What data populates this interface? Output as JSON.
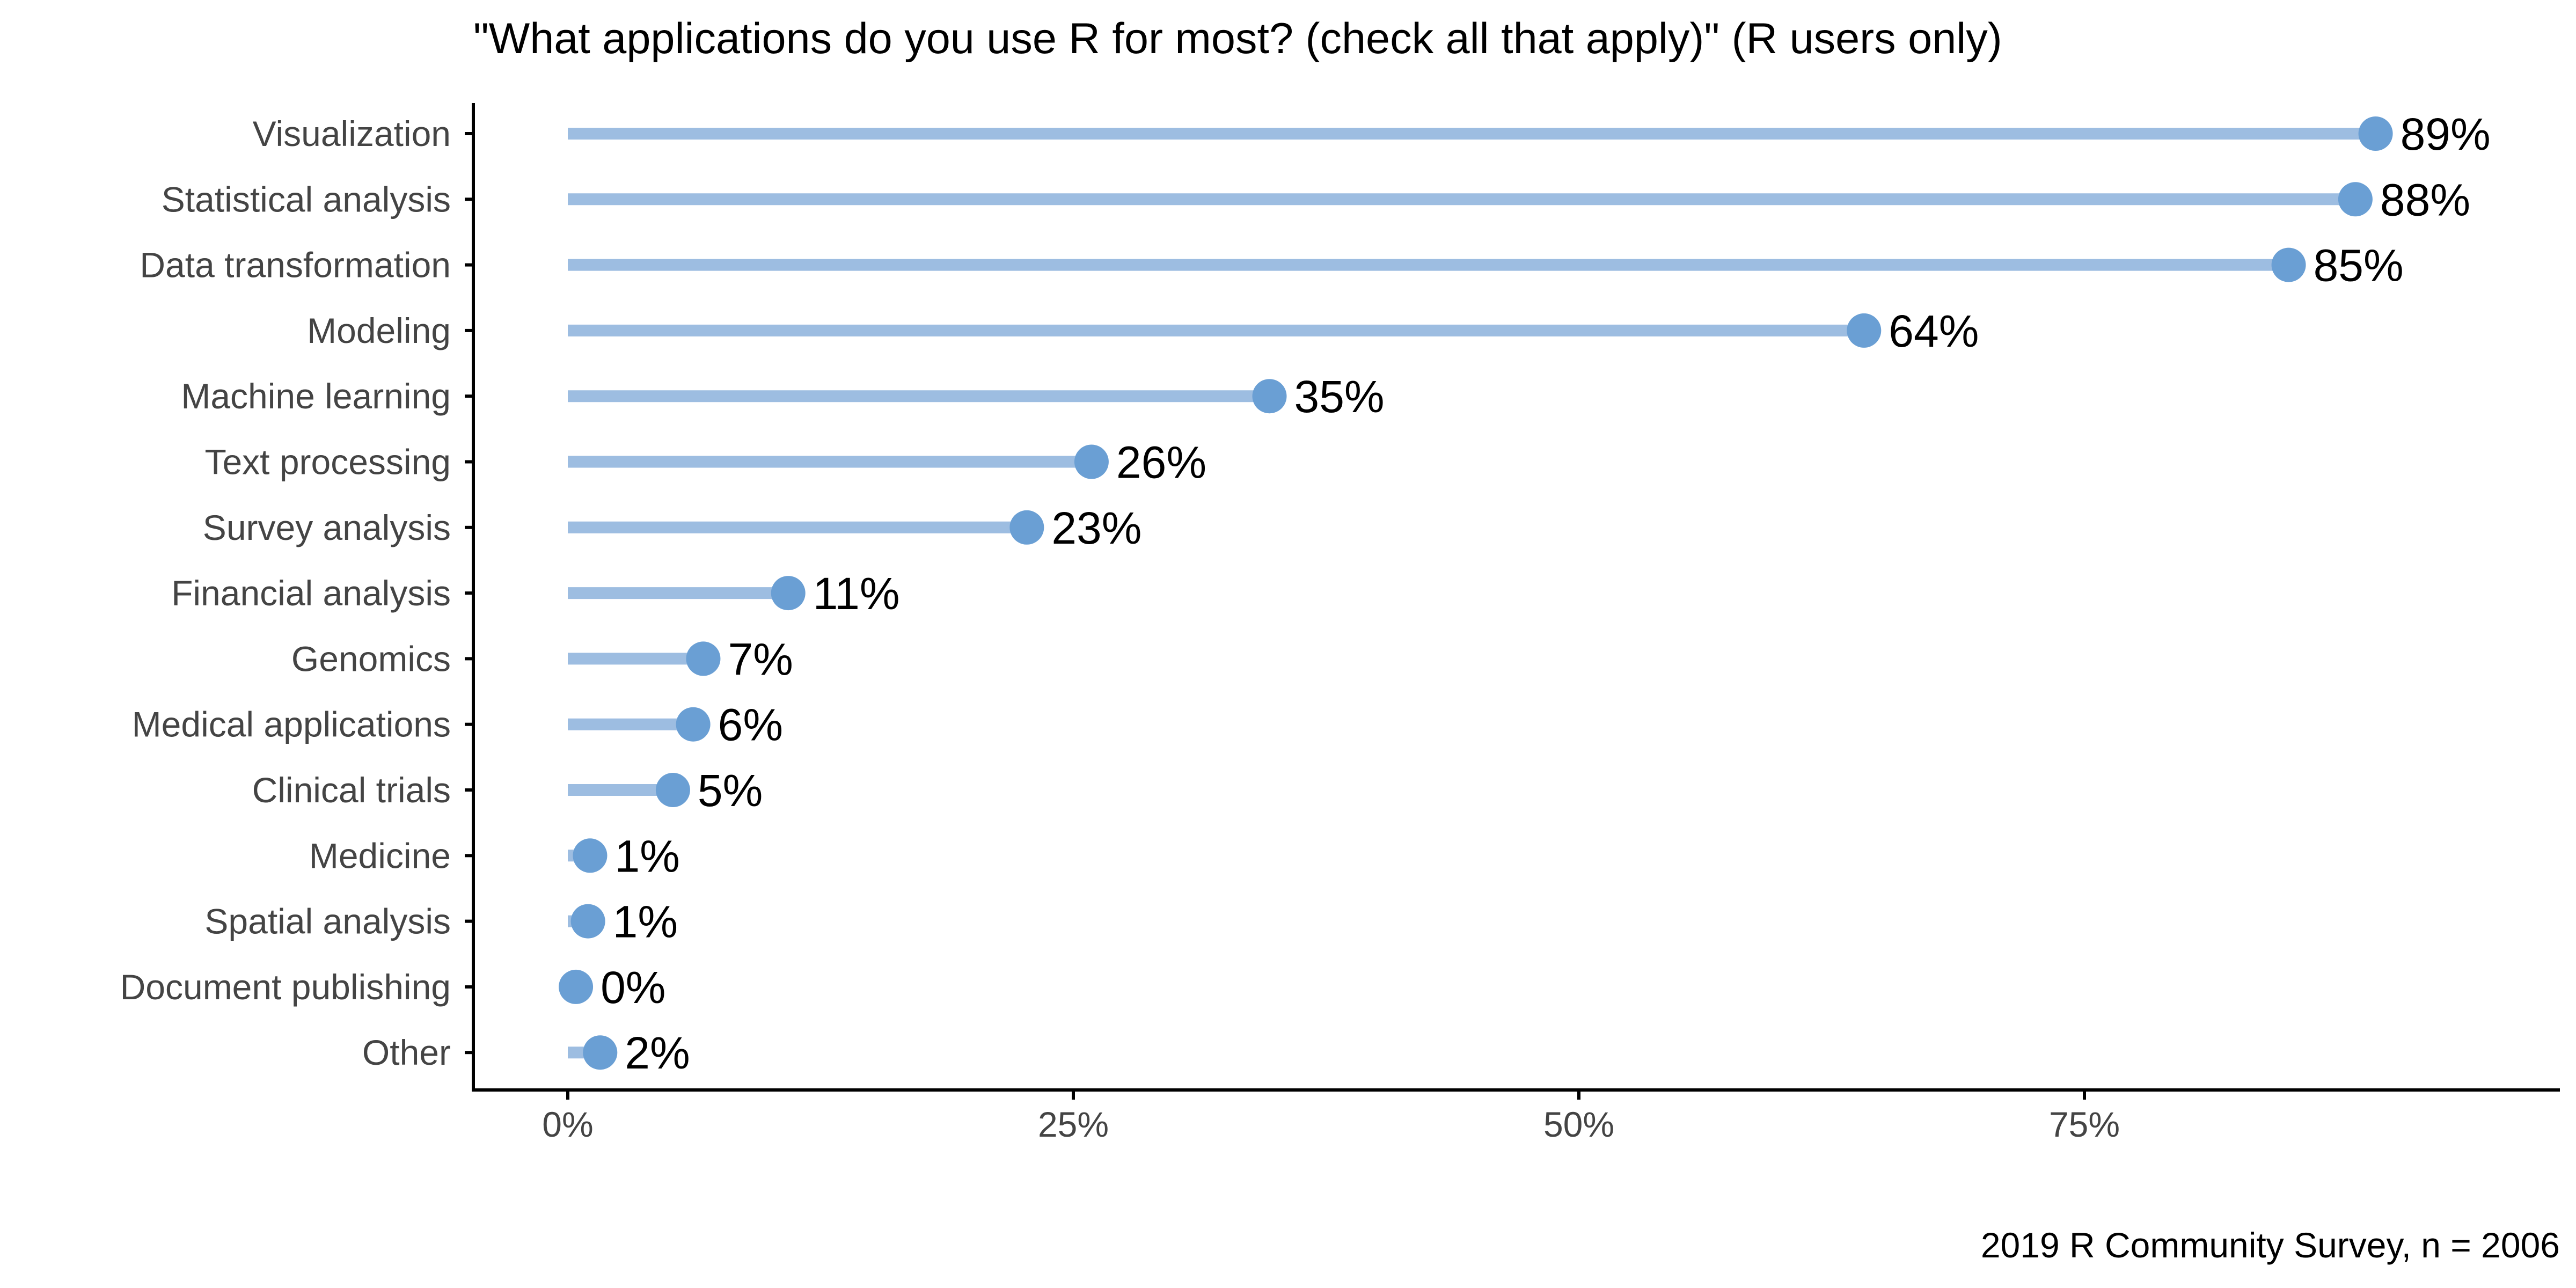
{
  "colors": {
    "point": "#6a9fd4",
    "stem": "#9dbde1",
    "axis": "#000000",
    "text": "#000000",
    "tick_text": "#444444"
  },
  "chart_data": {
    "type": "lollipop",
    "orientation": "horizontal",
    "title": "\"What applications do you use R for most? (check all that apply)\" (R users only)",
    "caption": "2019 R Community Survey, n = 2006",
    "xlabel": "",
    "ylabel": "",
    "xlim": [
      0,
      1
    ],
    "xticks": [
      0,
      0.25,
      0.5,
      0.75
    ],
    "xtick_labels": [
      "0%",
      "25%",
      "50%",
      "75%"
    ],
    "grid": false,
    "categories": [
      "Visualization",
      "Statistical analysis",
      "Data transformation",
      "Modeling",
      "Machine learning",
      "Text processing",
      "Survey analysis",
      "Financial analysis",
      "Genomics",
      "Medical applications",
      "Clinical trials",
      "Medicine",
      "Spatial analysis",
      "Document publishing",
      "Other"
    ],
    "values": [
      0.894,
      0.884,
      0.851,
      0.641,
      0.347,
      0.259,
      0.227,
      0.109,
      0.067,
      0.062,
      0.052,
      0.011,
      0.01,
      0.004,
      0.016
    ],
    "labels": [
      "89%",
      "88%",
      "85%",
      "64%",
      "35%",
      "26%",
      "23%",
      "11%",
      "7%",
      "6%",
      "5%",
      "1%",
      "1%",
      "0%",
      "2%"
    ]
  }
}
